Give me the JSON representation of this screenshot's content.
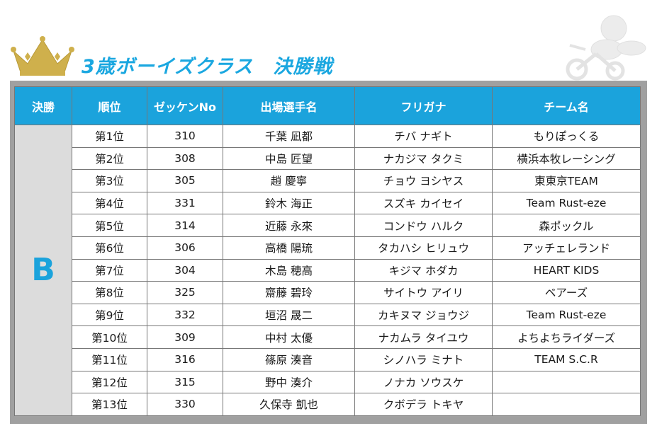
{
  "header": {
    "title": "3歳ボーイズクラス　決勝戦",
    "crown_color": "#cfb04c",
    "accent_color": "#1ba3dc"
  },
  "table": {
    "columns": [
      "決勝",
      "順位",
      "ゼッケンNo",
      "出場選手名",
      "フリガナ",
      "チーム名"
    ],
    "heat": "B",
    "rows": [
      {
        "rank": "第1位",
        "no": "310",
        "name": "千葉 凪都",
        "kana": "チバ ナギト",
        "team": "もりぽっくる"
      },
      {
        "rank": "第2位",
        "no": "308",
        "name": "中島 匠望",
        "kana": "ナカジマ タクミ",
        "team": "横浜本牧レーシング"
      },
      {
        "rank": "第3位",
        "no": "305",
        "name": "趙 慶寧",
        "kana": "チョウ ヨシヤス",
        "team": "東東京TEAM"
      },
      {
        "rank": "第4位",
        "no": "331",
        "name": "鈴木 海正",
        "kana": "スズキ カイセイ",
        "team": "Team Rust-eze"
      },
      {
        "rank": "第5位",
        "no": "314",
        "name": "近藤 永來",
        "kana": "コンドウ ハルク",
        "team": "森ポックル"
      },
      {
        "rank": "第6位",
        "no": "306",
        "name": "高橋 陽琉",
        "kana": "タカハシ ヒリュウ",
        "team": "アッチェレランド"
      },
      {
        "rank": "第7位",
        "no": "304",
        "name": "木島 穂高",
        "kana": "キジマ ホダカ",
        "team": "HEART KIDS"
      },
      {
        "rank": "第8位",
        "no": "325",
        "name": "齋藤 碧玲",
        "kana": "サイトウ アイリ",
        "team": "ベアーズ"
      },
      {
        "rank": "第9位",
        "no": "332",
        "name": "垣沼 晟二",
        "kana": "カキヌマ ジョウジ",
        "team": "Team Rust-eze"
      },
      {
        "rank": "第10位",
        "no": "309",
        "name": "中村 太優",
        "kana": "ナカムラ タイユウ",
        "team": "よちよちライダーズ"
      },
      {
        "rank": "第11位",
        "no": "316",
        "name": "篠原 湊音",
        "kana": "シノハラ ミナト",
        "team": "TEAM S.C.R"
      },
      {
        "rank": "第12位",
        "no": "315",
        "name": "野中 湊介",
        "kana": "ノナカ ソウスケ",
        "team": ""
      },
      {
        "rank": "第13位",
        "no": "330",
        "name": "久保寺 凱也",
        "kana": "クボデラ トキヤ",
        "team": ""
      }
    ]
  }
}
